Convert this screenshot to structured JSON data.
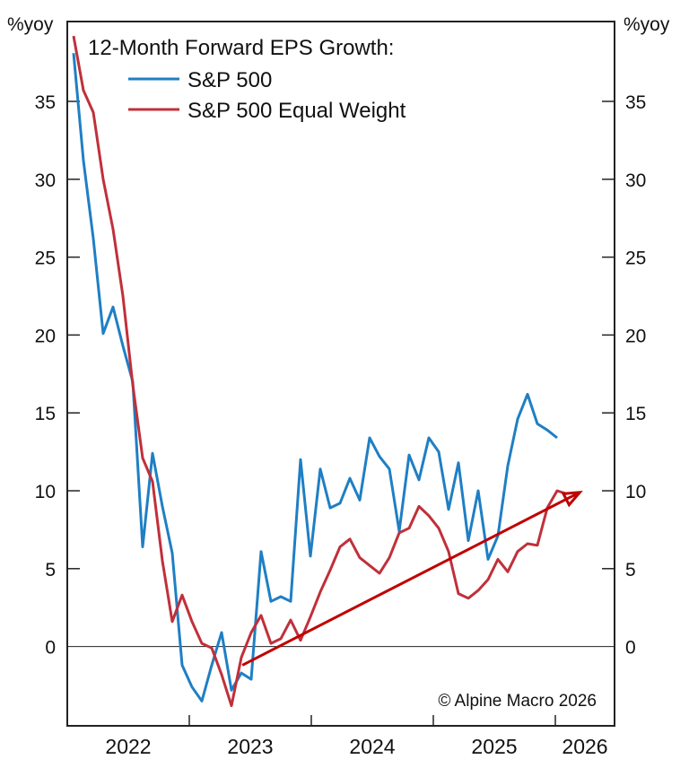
{
  "chart_data": {
    "type": "line",
    "title": "12-Month Forward EPS Growth:",
    "ylabel_left": "%yoy",
    "ylabel_right": "%yoy",
    "xlabel": "",
    "ylim": [
      -5,
      40
    ],
    "yticks": [
      0,
      5,
      10,
      15,
      20,
      25,
      30,
      35
    ],
    "xlim_months_from_jan_2022": [
      0,
      54
    ],
    "xtick_labels": [
      "2022",
      "2023",
      "2024",
      "2025",
      "2026"
    ],
    "x_start": "2022-01",
    "x_frequency": "monthly",
    "zero_line": true,
    "grid": false,
    "legend_position": "top-left",
    "annotation": "© Alpine Macro 2026",
    "trend_arrow": {
      "color": "#c00000",
      "from": {
        "month_index": 17.1,
        "value": -1.2
      },
      "to": {
        "month_index": 51.3,
        "value": 9.9
      }
    },
    "series": [
      {
        "name": "S&P 500",
        "color": "#1f7fc4",
        "values": [
          38.1,
          31.2,
          26.2,
          20.1,
          21.8,
          19.3,
          17.0,
          6.4,
          12.4,
          9.0,
          6.0,
          -1.2,
          -2.6,
          -3.5,
          -1.2,
          0.9,
          -2.8,
          -1.7,
          -2.1,
          6.1,
          2.9,
          3.2,
          2.9,
          12.0,
          5.8,
          11.4,
          8.9,
          9.2,
          10.8,
          9.4,
          13.4,
          12.2,
          11.4,
          7.4,
          12.3,
          10.7,
          13.4,
          12.5,
          8.8,
          11.8,
          6.8,
          10.0,
          5.6,
          7.1,
          11.6,
          14.6,
          16.2,
          14.3,
          13.9,
          13.4
        ]
      },
      {
        "name": "S&P 500 Equal Weight",
        "color": "#c0303a",
        "values": [
          39.2,
          35.7,
          34.3,
          30.0,
          26.8,
          22.5,
          16.8,
          12.1,
          10.6,
          5.5,
          1.6,
          3.3,
          1.6,
          0.2,
          -0.1,
          -1.8,
          -3.8,
          -0.7,
          0.9,
          2.0,
          0.2,
          0.5,
          1.7,
          0.4,
          1.9,
          3.5,
          4.9,
          6.4,
          6.9,
          5.7,
          5.2,
          4.7,
          5.7,
          7.3,
          7.6,
          9.0,
          8.4,
          7.6,
          6.1,
          3.4,
          3.1,
          3.6,
          4.3,
          5.6,
          4.8,
          6.1,
          6.6,
          6.5,
          8.9,
          10.0,
          9.8
        ]
      }
    ]
  }
}
